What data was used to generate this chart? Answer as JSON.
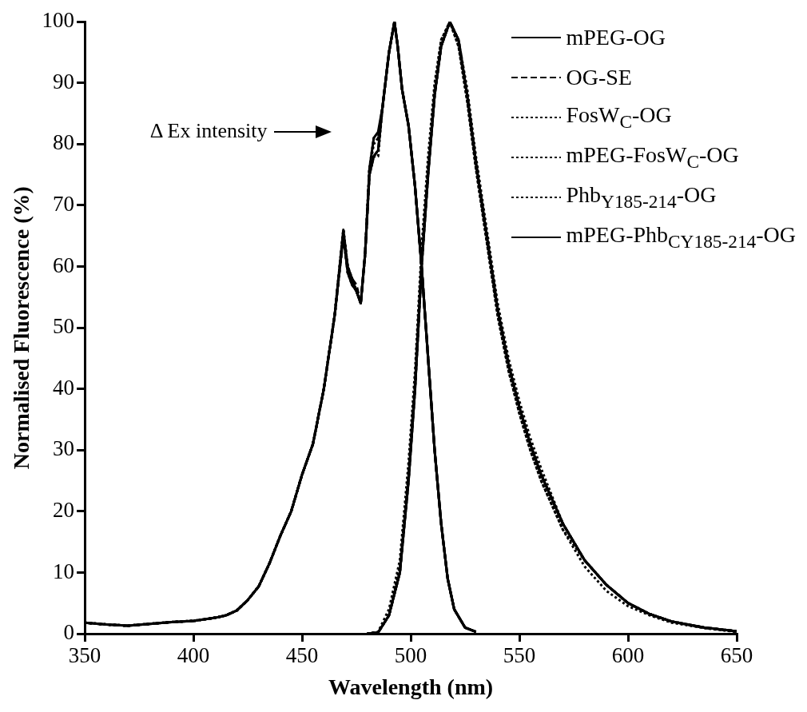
{
  "chart_data": {
    "type": "line",
    "xlabel": "Wavelength (nm)",
    "ylabel": "Normalised Fluorescence (%)",
    "xlim": [
      350,
      650
    ],
    "xticks": [
      350,
      400,
      450,
      500,
      550,
      600,
      650
    ],
    "ylim": [
      0,
      100
    ],
    "yticks": [
      0,
      10,
      20,
      30,
      40,
      50,
      60,
      70,
      80,
      90,
      100
    ],
    "legend": "top right",
    "annotations": [
      "Δ Ex intensity"
    ],
    "series": [
      {
        "name": "mPEG-OG",
        "color": "#000000",
        "line_style": "solid",
        "x": [
          350,
          360,
          370,
          380,
          390,
          400,
          410,
          415,
          420,
          425,
          430,
          435,
          440,
          445,
          450,
          455,
          460,
          465,
          469,
          471,
          473,
          475,
          477,
          479,
          481,
          483,
          485,
          487,
          490,
          492.5,
          494,
          496,
          499,
          502,
          505,
          508,
          511,
          514,
          517,
          520,
          525,
          530
        ],
        "values": [
          1.8,
          1.5,
          1.3,
          1.6,
          1.9,
          2.1,
          2.6,
          3,
          3.8,
          5.5,
          7.7,
          11.5,
          16,
          20,
          26,
          31,
          40,
          52,
          66,
          60,
          58,
          56,
          54,
          62,
          76,
          81,
          82,
          86,
          95,
          100,
          96,
          89,
          83,
          73,
          60,
          45,
          30,
          18,
          9,
          4,
          1,
          0.3
        ]
      },
      {
        "name": "OG-SE",
        "color": "#000000",
        "line_style": "dashed",
        "x": [
          350,
          360,
          370,
          380,
          390,
          400,
          410,
          415,
          420,
          425,
          430,
          435,
          440,
          445,
          450,
          455,
          460,
          465,
          469,
          471,
          473,
          475,
          477,
          479,
          481,
          483,
          485,
          487,
          490,
          492.5,
          494,
          496,
          499,
          502,
          505,
          508,
          511,
          514,
          517,
          520,
          525,
          530
        ],
        "values": [
          1.8,
          1.5,
          1.3,
          1.6,
          1.9,
          2.1,
          2.6,
          3,
          3.8,
          5.5,
          7.7,
          11.5,
          16,
          20,
          26,
          31,
          40,
          52,
          65,
          59,
          58,
          57,
          54,
          62,
          75,
          78,
          79,
          86,
          95,
          100,
          96,
          89,
          83,
          73,
          60,
          45,
          30,
          18,
          9,
          4,
          1,
          0.3
        ]
      },
      {
        "name": "FosW$_{C}$-OG",
        "color": "#000000",
        "line_style": "dotted",
        "x": [
          350,
          360,
          370,
          380,
          390,
          400,
          410,
          415,
          420,
          425,
          430,
          435,
          440,
          445,
          450,
          455,
          460,
          465,
          469,
          471,
          473,
          475,
          477,
          479,
          481,
          483,
          485,
          487,
          490,
          492.5,
          494,
          496,
          499,
          502,
          505,
          508,
          511,
          514,
          517,
          520,
          525,
          530
        ],
        "values": [
          1.8,
          1.5,
          1.3,
          1.6,
          1.9,
          2.1,
          2.6,
          3,
          3.8,
          5.5,
          7.7,
          11.5,
          16,
          20,
          26,
          31,
          40,
          52,
          66,
          60,
          58,
          56,
          54,
          62,
          76,
          81,
          81,
          86,
          95,
          100,
          96,
          89,
          83,
          73,
          60,
          45,
          30,
          18,
          9,
          4,
          1,
          0.3
        ]
      },
      {
        "name": "mPEG-FosW$_{C}$-OG",
        "color": "#000000",
        "line_style": "dotted",
        "x": [
          350,
          360,
          370,
          380,
          390,
          400,
          410,
          415,
          420,
          425,
          430,
          435,
          440,
          445,
          450,
          455,
          460,
          465,
          469,
          471,
          473,
          475,
          477,
          479,
          481,
          483,
          485,
          487,
          490,
          492.5,
          494,
          496,
          499,
          502,
          505,
          508,
          511,
          514,
          517,
          520,
          525,
          530
        ],
        "values": [
          1.8,
          1.5,
          1.3,
          1.6,
          1.9,
          2.1,
          2.6,
          3,
          3.8,
          5.5,
          7.7,
          11.5,
          16,
          20,
          26,
          31,
          40,
          52,
          65,
          59,
          57,
          56,
          54,
          62,
          75,
          78,
          78,
          86,
          95,
          100,
          96,
          89,
          83,
          73,
          60,
          45,
          30,
          18,
          9,
          4,
          1,
          0.3
        ]
      },
      {
        "name": "Phb$_{Y185-214}$-OG",
        "color": "#000000",
        "line_style": "dotted",
        "x": [
          350,
          360,
          370,
          380,
          390,
          400,
          410,
          415,
          420,
          425,
          430,
          435,
          440,
          445,
          450,
          455,
          460,
          465,
          469,
          471,
          473,
          475,
          477,
          479,
          481,
          483,
          485,
          487,
          490,
          492.5,
          494,
          496,
          499,
          502,
          505,
          508,
          511,
          514,
          517,
          520,
          525,
          530
        ],
        "values": [
          1.8,
          1.5,
          1.3,
          1.6,
          1.9,
          2.1,
          2.6,
          3,
          3.8,
          5.5,
          7.7,
          11.5,
          16,
          20,
          26,
          31,
          40,
          52,
          66,
          60,
          58,
          56,
          54,
          62,
          76,
          80,
          81,
          86,
          95,
          100,
          96,
          89,
          83,
          73,
          60,
          45,
          30,
          18,
          9,
          4,
          1,
          0.3
        ]
      },
      {
        "name": "mPEG-Phb$_{CY185-214}$-OG",
        "color": "#000000",
        "line_style": "solid",
        "x": [
          350,
          360,
          370,
          380,
          390,
          400,
          410,
          415,
          420,
          425,
          430,
          435,
          440,
          445,
          450,
          455,
          460,
          465,
          469,
          471,
          473,
          475,
          477,
          479,
          481,
          483,
          485,
          487,
          490,
          492.5,
          494,
          496,
          499,
          502,
          505,
          508,
          511,
          514,
          517,
          520,
          525,
          530
        ],
        "values": [
          1.8,
          1.5,
          1.3,
          1.6,
          1.9,
          2.1,
          2.6,
          3,
          3.8,
          5.5,
          7.7,
          11.5,
          16,
          20,
          26,
          31,
          40,
          52,
          65,
          59,
          57,
          56,
          54,
          62,
          75,
          78,
          79,
          86,
          95,
          100,
          96,
          89,
          83,
          73,
          60,
          45,
          30,
          18,
          9,
          4,
          1,
          0.3
        ]
      },
      {
        "color": "#000000",
        "line_style": "solid",
        "x": [
          480,
          485,
          490,
          495,
          499,
          502,
          505,
          508,
          511,
          514,
          518,
          522,
          526,
          530,
          535,
          540,
          545,
          550,
          555,
          560,
          570,
          580,
          590,
          600,
          610,
          620,
          635,
          650
        ],
        "values": [
          0,
          0.2,
          3,
          10,
          25,
          40,
          60,
          75,
          88,
          96,
          100,
          97,
          88,
          77,
          65,
          53,
          44,
          37,
          31,
          26,
          18,
          12,
          8,
          5,
          3.2,
          2,
          1,
          0.4
        ]
      },
      {
        "color": "#000000",
        "line_style": "dashed",
        "x": [
          480,
          485,
          490,
          495,
          499,
          502,
          505,
          508,
          511,
          514,
          518,
          522,
          526,
          530,
          535,
          540,
          545,
          550,
          555,
          560,
          570,
          580,
          590,
          600,
          610,
          620,
          635,
          650
        ],
        "values": [
          0,
          0.2,
          3,
          10,
          26,
          41,
          61,
          76,
          88,
          96,
          100,
          97,
          88,
          77,
          65,
          53,
          44,
          37,
          31,
          26,
          18,
          12,
          8,
          5,
          3.2,
          2,
          1,
          0.4
        ]
      },
      {
        "color": "#000000",
        "line_style": "dotted",
        "x": [
          480,
          485,
          490,
          495,
          499,
          502,
          505,
          508,
          511,
          514,
          518,
          522,
          526,
          530,
          535,
          540,
          545,
          550,
          555,
          560,
          570,
          580,
          590,
          600,
          610,
          620,
          635,
          650
        ],
        "values": [
          0,
          0.2,
          3,
          10,
          25,
          40,
          60,
          75,
          88,
          96,
          100,
          97,
          89,
          78,
          66,
          54,
          45,
          38,
          32,
          27,
          18,
          12,
          8,
          5,
          3.2,
          2,
          1,
          0.4
        ]
      },
      {
        "color": "#000000",
        "line_style": "dotted",
        "x": [
          480,
          485,
          490,
          495,
          499,
          502,
          505,
          508,
          511,
          514,
          518,
          522,
          526,
          530,
          535,
          540,
          545,
          550,
          555,
          560,
          570,
          580,
          590,
          600,
          610,
          620,
          635,
          650
        ],
        "values": [
          0,
          0.3,
          4,
          12,
          28,
          43,
          63,
          78,
          90,
          97,
          100,
          96,
          87,
          76,
          64,
          52,
          43,
          36,
          30,
          25,
          17,
          11,
          7,
          4.5,
          3,
          1.8,
          0.9,
          0.3
        ]
      },
      {
        "color": "#000000",
        "line_style": "dotted",
        "x": [
          480,
          485,
          490,
          495,
          499,
          502,
          505,
          508,
          511,
          514,
          518,
          522,
          526,
          530,
          535,
          540,
          545,
          550,
          555,
          560,
          570,
          580,
          590,
          600,
          610,
          620,
          635,
          650
        ],
        "values": [
          0,
          0.2,
          3,
          11,
          26,
          41,
          61,
          76,
          89,
          97,
          100,
          96,
          87,
          76,
          64,
          52,
          43,
          36,
          30,
          25,
          17,
          12,
          8,
          5,
          3.2,
          2,
          1,
          0.4
        ]
      },
      {
        "color": "#000000",
        "line_style": "solid",
        "x": [
          480,
          485,
          490,
          495,
          499,
          502,
          505,
          508,
          511,
          514,
          518,
          522,
          526,
          530,
          535,
          540,
          545,
          550,
          555,
          560,
          570,
          580,
          590,
          600,
          610,
          620,
          635,
          650
        ],
        "values": [
          0,
          0.2,
          3,
          10,
          25,
          40,
          60,
          75,
          88,
          96,
          100,
          97,
          88,
          77,
          65,
          53,
          44,
          37,
          31,
          26,
          18,
          12,
          8,
          5,
          3.2,
          2,
          1,
          0.4
        ]
      }
    ]
  }
}
